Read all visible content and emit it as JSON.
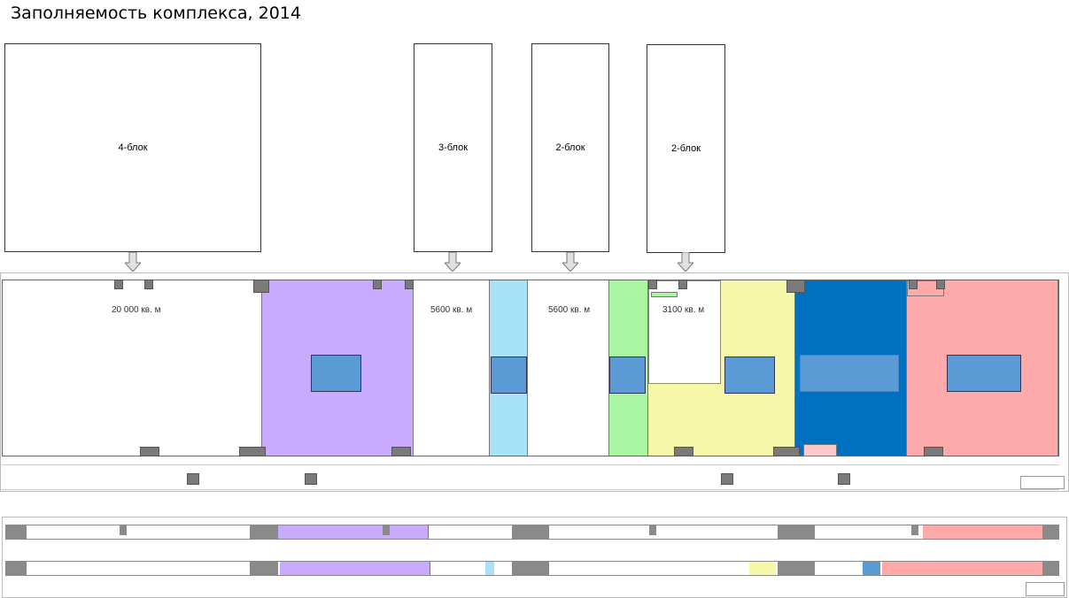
{
  "title": "Заполняемость комплекса, 2014",
  "blocks": [
    {
      "label": "4-блок"
    },
    {
      "label": "3-блок"
    },
    {
      "label": "2-блок"
    },
    {
      "label": "2-блок"
    }
  ],
  "areas": [
    {
      "label": "20 000 кв. м"
    },
    {
      "label": "5600 кв. м"
    },
    {
      "label": "5600 кв. м"
    },
    {
      "label": "3100 кв. м"
    }
  ],
  "colors": {
    "purple": "#c8aaff",
    "light_blue": "#a8e2f8",
    "green": "#aaf5a2",
    "yellow": "#f7f7a8",
    "dark_blue": "#0070c0",
    "pink": "#ffaaaa",
    "inner_blue": "#5b9bd5",
    "grey": "#7f7f7f"
  }
}
